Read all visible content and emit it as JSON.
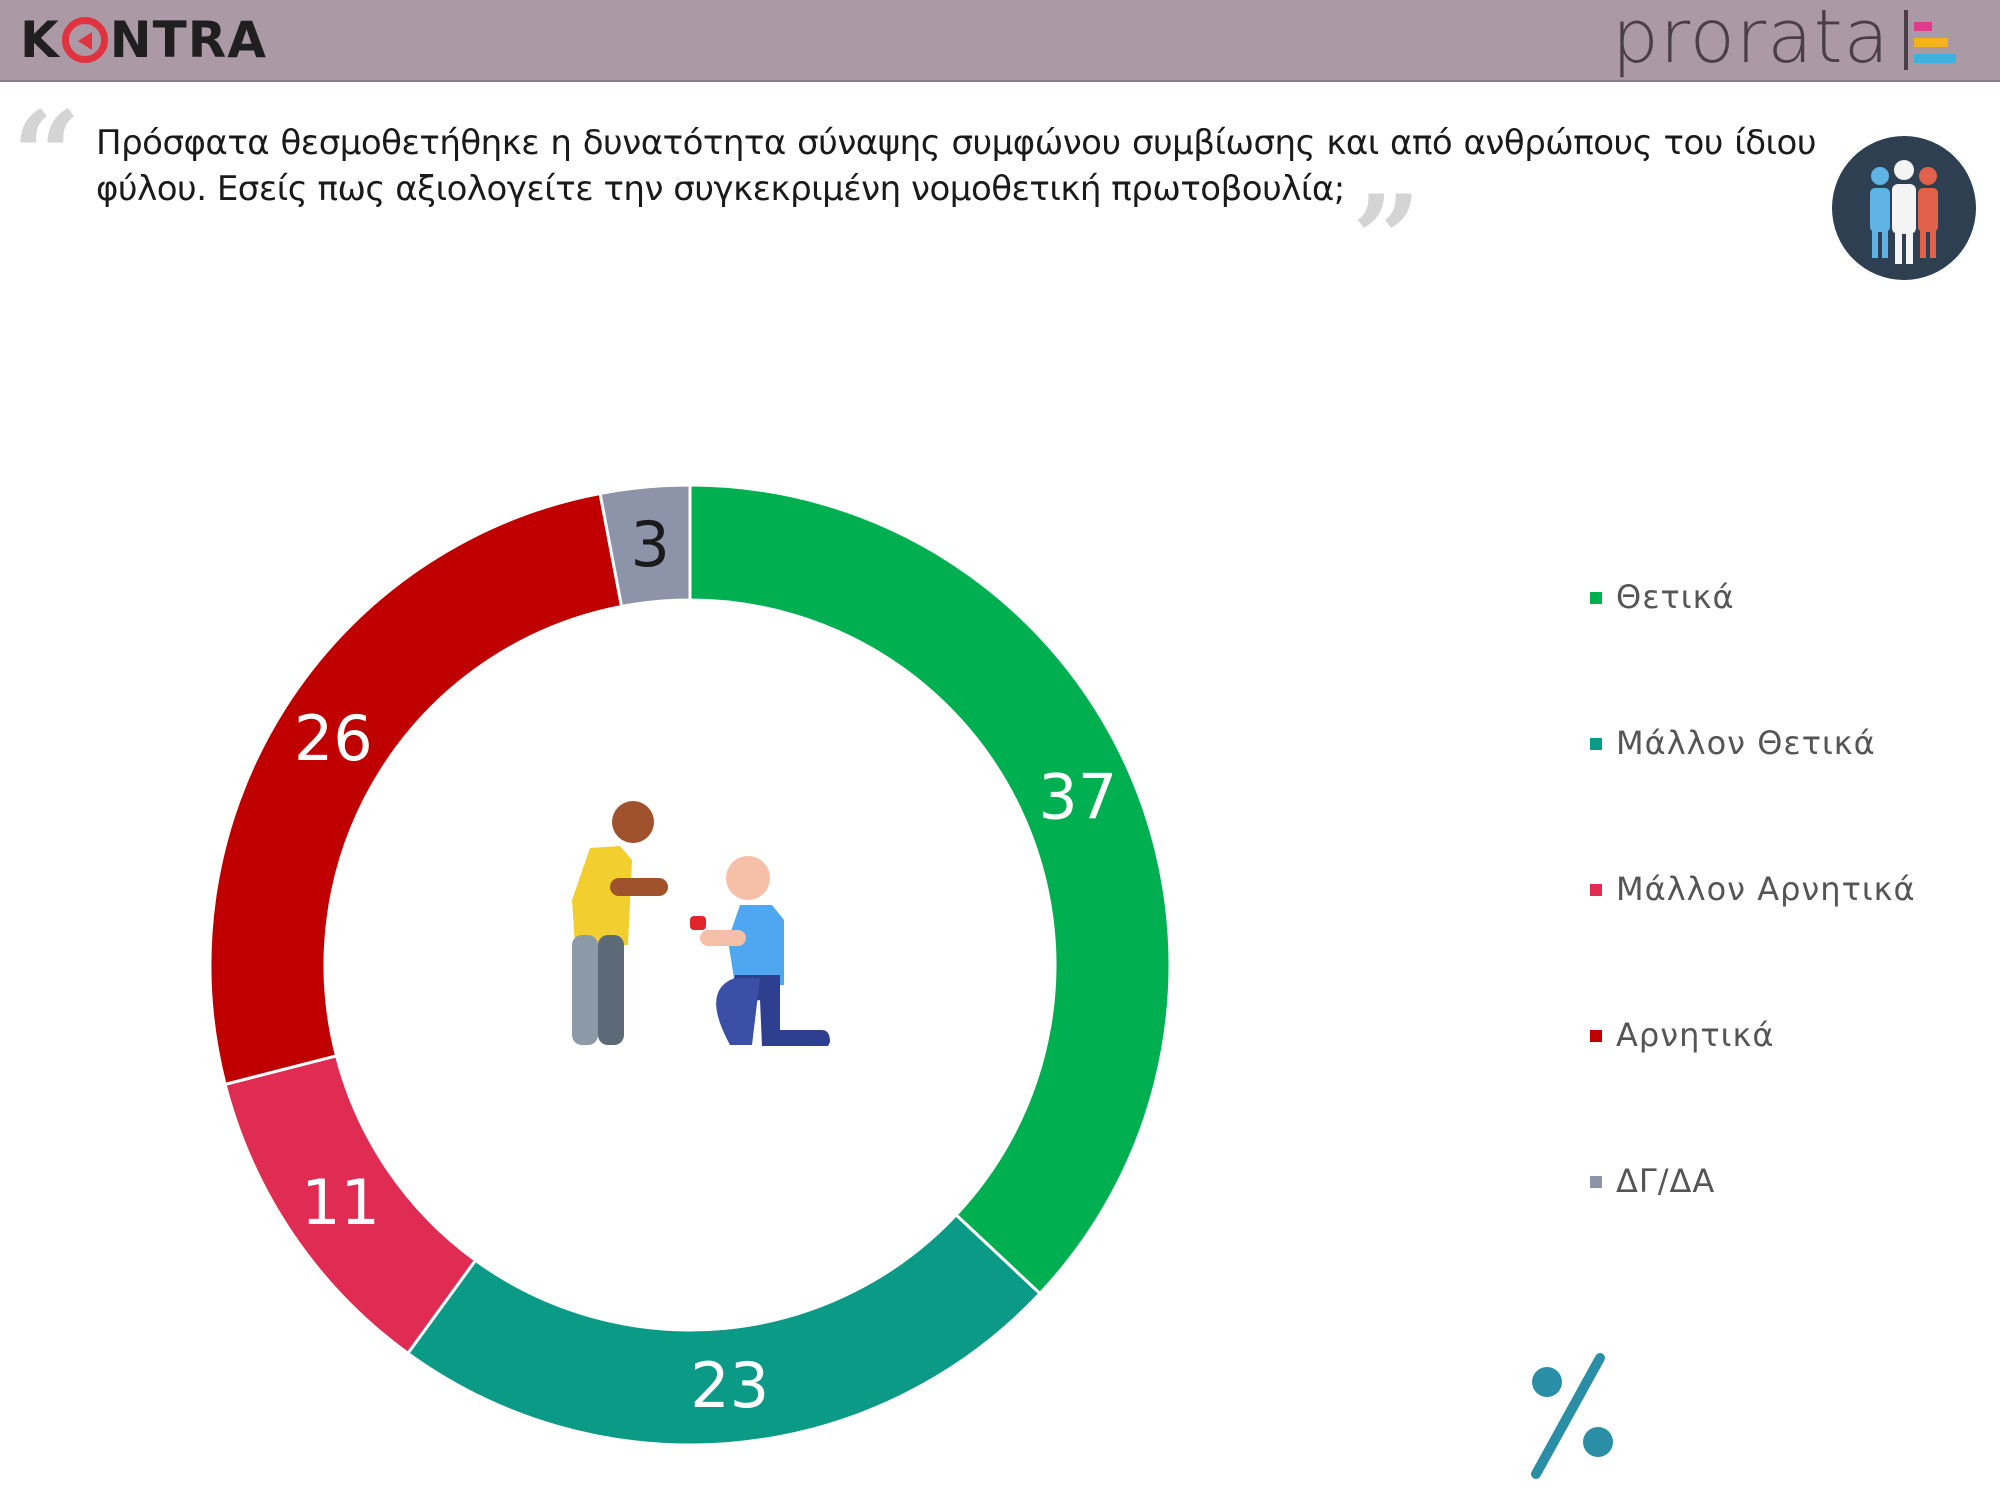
{
  "header": {
    "brand_left_pre": "K",
    "brand_left_post": "NTRA",
    "brand_right": "prorata",
    "brand_mark_colors": [
      "#e23a8c",
      "#f6b21a",
      "#3bb3e0"
    ]
  },
  "question": {
    "text": "Πρόσφατα θεσμοθετήθηκε η δυνατότητα σύναψης συμφώνου συμβίωσης και από ανθρώπους του ίδιου φύλου. Εσείς πως αξιολογείτε την συγκεκριμένη νομοθετική πρωτοβουλία;",
    "open_quote": "“",
    "close_quote": "”"
  },
  "icons": {
    "people_badge": "people-group-icon",
    "center_image": "proposal-icon",
    "percent": "percent-icon"
  },
  "chart_data": {
    "type": "pie",
    "donut": true,
    "start_angle_deg": 0,
    "direction": "clockwise",
    "categories": [
      "Θετικά",
      "Μάλλον Θετικά",
      "Μάλλον Αρνητικά",
      "Αρνητικά",
      "ΔΓ/ΔΑ"
    ],
    "values": [
      37,
      23,
      11,
      26,
      3
    ],
    "colors": [
      "#00b050",
      "#0b9a86",
      "#e02b52",
      "#c00000",
      "#8d93a8"
    ],
    "label_colors": [
      "#ffffff",
      "#ffffff",
      "#ffffff",
      "#ffffff",
      "#1a1a1a"
    ],
    "unit": "%",
    "legend_position": "right"
  }
}
